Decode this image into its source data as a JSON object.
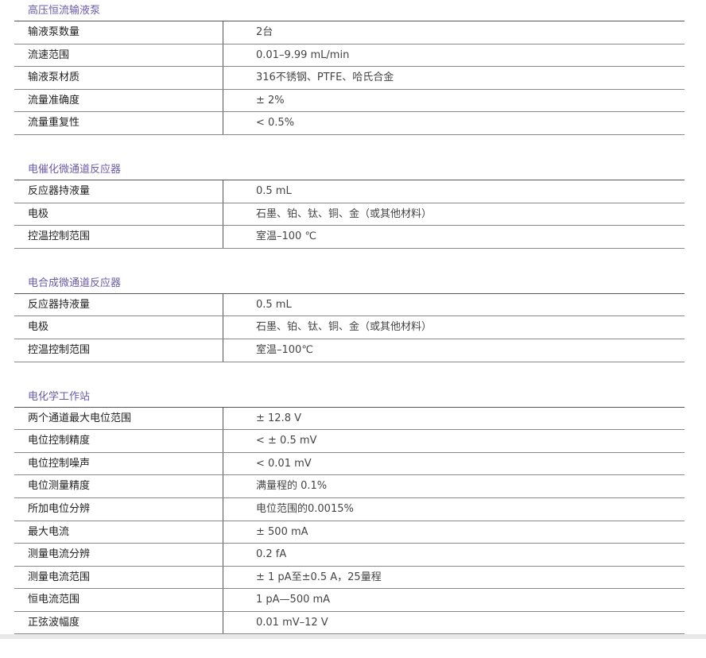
{
  "sections": [
    {
      "title": "高压恒流输液泵",
      "rows": [
        {
          "k": "输液泵数量",
          "v": "2台"
        },
        {
          "k": "流速范围",
          "v": "0.01–9.99 mL/min"
        },
        {
          "k": "输液泵材质",
          "v": "316不锈钢、PTFE、哈氏合金"
        },
        {
          "k": "流量准确度",
          "v": "± 2%"
        },
        {
          "k": "流量重复性",
          "v": "< 0.5%"
        }
      ]
    },
    {
      "title": "电催化微通道反应器",
      "rows": [
        {
          "k": "反应器持液量",
          "v": "0.5 mL"
        },
        {
          "k": "电极",
          "v": "石墨、铂、钛、铜、金（或其他材料）"
        },
        {
          "k": "控温控制范围",
          "v": "室温–100 ℃"
        }
      ]
    },
    {
      "title": "电合成微通道反应器",
      "rows": [
        {
          "k": "反应器持液量",
          "v": "0.5 mL"
        },
        {
          "k": "电极",
          "v": "石墨、铂、钛、铜、金（或其他材料）"
        },
        {
          "k": "控温控制范围",
          "v": "室温–100℃"
        }
      ]
    },
    {
      "title": "电化学工作站",
      "rows": [
        {
          "k": "两个通道最大电位范围",
          "v": "± 12.8 V"
        },
        {
          "k": "电位控制精度",
          "v": "< ± 0.5 mV"
        },
        {
          "k": "电位控制噪声",
          "v": "< 0.01 mV"
        },
        {
          "k": "电位测量精度",
          "v": "满量程的 0.1%"
        },
        {
          "k": "所加电位分辨",
          "v": "电位范围的0.0015%"
        },
        {
          "k": "最大电流",
          "v": "± 500 mA"
        },
        {
          "k": "测量电流分辨",
          "v": "0.2 fA"
        },
        {
          "k": "测量电流范围",
          "v": "± 1 pA至±0.5 A，25量程"
        },
        {
          "k": "恒电流范围",
          "v": "1 pA—500 mA"
        },
        {
          "k": "正弦波幅度",
          "v": "0.01 mV–12 V"
        }
      ]
    }
  ]
}
